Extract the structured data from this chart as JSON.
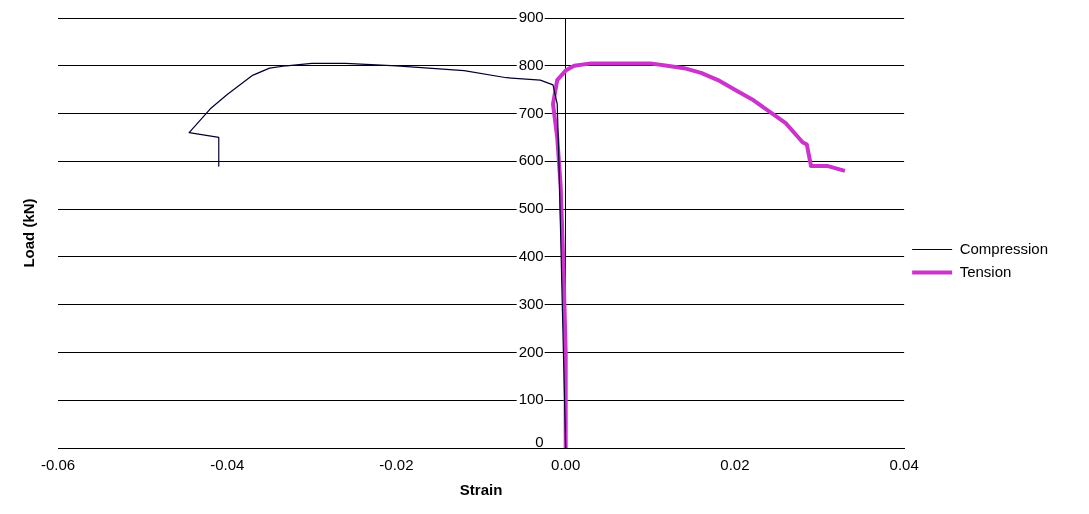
{
  "chart_data": {
    "type": "line",
    "xlabel": "Strain",
    "ylabel": "Load (kN)",
    "xlim": [
      -0.06,
      0.04
    ],
    "ylim": [
      0,
      900
    ],
    "xticks": [
      {
        "value": -0.06,
        "label": "-0.06"
      },
      {
        "value": -0.04,
        "label": "-0.04"
      },
      {
        "value": -0.02,
        "label": "-0.02"
      },
      {
        "value": 0,
        "label": "0.00"
      },
      {
        "value": 0.02,
        "label": "0.02"
      },
      {
        "value": 0.04,
        "label": "0.04"
      }
    ],
    "yticks": [
      0,
      100,
      200,
      300,
      400,
      500,
      600,
      700,
      800,
      900
    ],
    "grid": "y",
    "legend": "right",
    "marker": "none",
    "line_style": "solid",
    "series": [
      {
        "name": "Compression",
        "color": "#000033",
        "x": [
          0,
          -0.0004,
          -0.0008,
          -0.001,
          -0.0015,
          -0.003,
          -0.007,
          -0.012,
          -0.02,
          -0.026,
          -0.03,
          -0.033,
          -0.035,
          -0.037,
          -0.04,
          -0.042,
          -0.044,
          -0.0445,
          -0.041,
          -0.041
        ],
        "values": [
          0,
          300,
          600,
          720,
          760,
          770,
          775,
          790,
          800,
          805,
          805,
          800,
          795,
          780,
          740,
          710,
          670,
          660,
          650,
          590
        ]
      },
      {
        "name": "Tension",
        "color": "#cc33cc",
        "x": [
          0,
          0,
          -0.0003,
          -0.0006,
          -0.001,
          -0.0015,
          -0.001,
          0,
          0.001,
          0.003,
          0.006,
          0.01,
          0.012,
          0.014,
          0.016,
          0.018,
          0.02,
          0.022,
          0.024,
          0.026,
          0.028,
          0.0285,
          0.029,
          0.031,
          0.033
        ],
        "values": [
          0,
          200,
          400,
          550,
          650,
          720,
          770,
          790,
          800,
          805,
          805,
          805,
          800,
          795,
          785,
          770,
          750,
          730,
          705,
          680,
          640,
          635,
          590,
          590,
          580
        ]
      }
    ]
  }
}
